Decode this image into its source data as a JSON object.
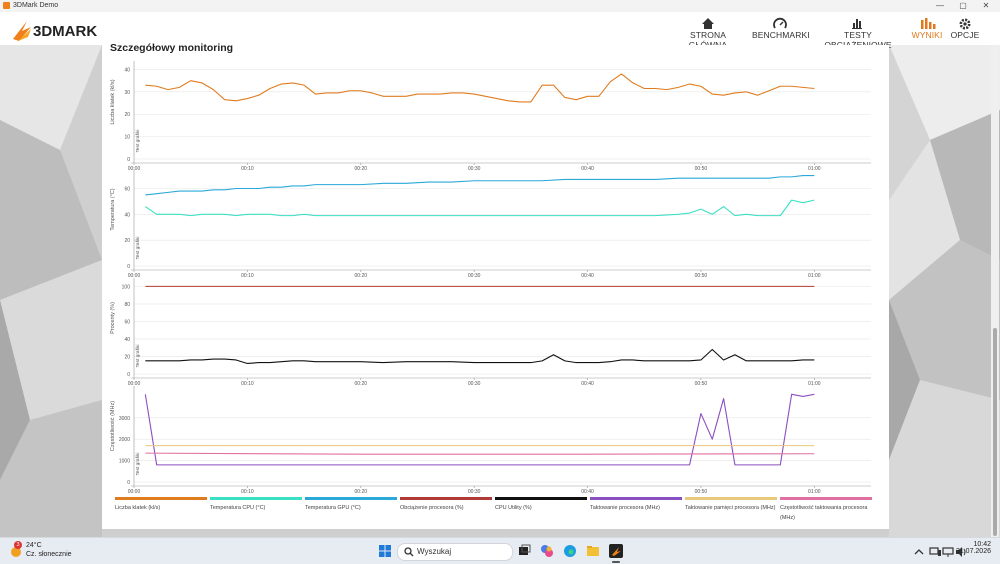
{
  "window": {
    "title": "3DMark Demo",
    "controls": [
      "—",
      "▢",
      "✕"
    ]
  },
  "nav": {
    "logo_text": "3DMARK",
    "items": [
      {
        "label": "STRONA GŁÓWNA",
        "icon": "home-icon"
      },
      {
        "label": "BENCHMARKI",
        "icon": "gauge-icon"
      },
      {
        "label": "TESTY OBCIĄŻENIOWE",
        "icon": "bar-chart-icon"
      },
      {
        "label": "WYNIKI",
        "icon": "results-icon",
        "active": true
      },
      {
        "label": "OPCJE",
        "icon": "gear-icon"
      }
    ],
    "accent": "#e0791e"
  },
  "panel": {
    "title": "Szczegółowy monitoring",
    "test_label": "Test grafiki"
  },
  "chart_data": [
    {
      "type": "line",
      "ylabel": "Liczba klatek (kl/s)",
      "yticks": [
        "0",
        "10",
        "20",
        "30",
        "40"
      ],
      "ylim": [
        0,
        42
      ],
      "xticks": [
        "00:00",
        "00:10",
        "00:20",
        "00:30",
        "00:40",
        "00:50",
        "01:00"
      ],
      "xlim": [
        0,
        65
      ],
      "series": [
        {
          "color": "#e07c20",
          "x": [
            1,
            2,
            3,
            4,
            5,
            6,
            7,
            8,
            9,
            10,
            11,
            12,
            13,
            14,
            15,
            16,
            17,
            18,
            19,
            20,
            21,
            22,
            23,
            24,
            25,
            26,
            27,
            28,
            29,
            30,
            31,
            32,
            33,
            34,
            35,
            36,
            37,
            38,
            39,
            40,
            41,
            42,
            43,
            44,
            45,
            46,
            47,
            48,
            49,
            50,
            51,
            52,
            53,
            54,
            55,
            56,
            57,
            58,
            59,
            60
          ],
          "y": [
            33,
            32.5,
            31,
            32,
            35,
            34,
            31,
            26.5,
            26,
            27,
            28.5,
            31.5,
            33.5,
            34,
            33,
            29,
            29.5,
            29.5,
            30.5,
            30.5,
            29.5,
            28,
            28,
            28,
            29,
            29,
            29,
            29.5,
            29.5,
            29,
            28,
            27,
            26,
            25.5,
            25.5,
            33,
            33,
            27.5,
            26.5,
            28,
            28,
            34.5,
            38,
            34,
            31.5,
            31.5,
            31,
            32,
            33.5,
            32.5,
            29,
            28.5,
            29.5,
            30,
            28.5,
            30.5,
            32.5,
            32.5,
            32,
            31.5
          ]
        }
      ]
    },
    {
      "type": "line",
      "ylabel": "Temperatura (°C)",
      "yticks": [
        "0",
        "20",
        "40",
        "60"
      ],
      "ylim": [
        0,
        72
      ],
      "xticks": [
        "00:00",
        "00:10",
        "00:20",
        "00:30",
        "00:40",
        "00:50",
        "01:00"
      ],
      "xlim": [
        0,
        65
      ],
      "series": [
        {
          "name": "Temperatura CPU (°C)",
          "color": "#3ae0c4",
          "x": [
            1,
            2,
            3,
            4,
            5,
            6,
            7,
            8,
            9,
            10,
            11,
            12,
            13,
            14,
            15,
            16,
            17,
            18,
            20,
            22,
            24,
            26,
            28,
            30,
            32,
            34,
            36,
            38,
            40,
            42,
            44,
            46,
            48,
            49,
            50,
            51,
            52,
            53,
            54,
            55,
            56,
            57,
            58,
            59,
            60
          ],
          "y": [
            46,
            40,
            40,
            40,
            39,
            40,
            40,
            40,
            39,
            40,
            40,
            40,
            39,
            39,
            40,
            39,
            39,
            39,
            39,
            39,
            39,
            39,
            39,
            39,
            39,
            39,
            39,
            39,
            39,
            39,
            39,
            39,
            40,
            41,
            44,
            40,
            46,
            39,
            40,
            39,
            39,
            39,
            51,
            49,
            51
          ]
        },
        {
          "name": "Temperatura GPU (°C)",
          "color": "#2aa8d8",
          "x": [
            1,
            2,
            3,
            4,
            5,
            6,
            7,
            8,
            9,
            10,
            11,
            12,
            13,
            14,
            15,
            16,
            17,
            18,
            20,
            22,
            24,
            26,
            28,
            30,
            32,
            34,
            36,
            38,
            40,
            42,
            44,
            46,
            48,
            49,
            50,
            51,
            52,
            53,
            54,
            55,
            56,
            57,
            58,
            59,
            60
          ],
          "y": [
            55,
            56,
            57,
            58,
            58,
            58,
            59,
            59,
            60,
            60,
            60,
            61,
            61,
            62,
            62,
            63,
            63,
            63,
            63,
            64,
            64,
            65,
            65,
            66,
            66,
            66,
            66,
            67,
            67,
            67,
            67,
            67,
            68,
            68,
            68,
            68,
            68,
            68,
            68,
            68,
            68,
            69,
            69,
            70,
            70
          ]
        }
      ]
    },
    {
      "type": "line",
      "ylabel": "Procenty (%)",
      "yticks": [
        "0",
        "20",
        "40",
        "60",
        "80",
        "100"
      ],
      "ylim": [
        0,
        105
      ],
      "xticks": [
        "00:00",
        "00:10",
        "00:20",
        "00:30",
        "00:40",
        "00:50",
        "01:00"
      ],
      "xlim": [
        0,
        65
      ],
      "series": [
        {
          "name": "Obciążenie procesora (%)",
          "color": "#b03a36",
          "x": [
            1,
            60
          ],
          "y": [
            100,
            100
          ]
        },
        {
          "name": "CPU Utility (%)",
          "color": "#111111",
          "x": [
            1,
            2,
            3,
            4,
            5,
            6,
            7,
            8,
            9,
            10,
            11,
            12,
            13,
            14,
            15,
            16,
            17,
            18,
            20,
            22,
            24,
            26,
            28,
            30,
            32,
            34,
            35,
            36,
            37,
            38,
            39,
            40,
            41,
            42,
            43,
            44,
            45,
            46,
            47,
            48,
            49,
            50,
            51,
            52,
            53,
            54,
            55,
            56,
            57,
            58,
            59,
            60
          ],
          "y": [
            15,
            15,
            15,
            15,
            16,
            16,
            17,
            17,
            16,
            12,
            13,
            13,
            14,
            15,
            15,
            14,
            14,
            14,
            14,
            13,
            14,
            14,
            14,
            13,
            13,
            13,
            13,
            15,
            22,
            15,
            13,
            13,
            13,
            14,
            16,
            16,
            15,
            15,
            15,
            15,
            15,
            16,
            28,
            16,
            22,
            15,
            15,
            15,
            15,
            15,
            16,
            16
          ]
        }
      ]
    },
    {
      "type": "line",
      "ylabel": "Częstotliwość (MHz)",
      "yticks": [
        "0",
        "1000",
        "2000",
        "3000"
      ],
      "ylim": [
        0,
        4300
      ],
      "xticks": [
        "00:00",
        "00:10",
        "00:20",
        "00:30",
        "00:40",
        "00:50",
        "01:00"
      ],
      "xlim": [
        0,
        65
      ],
      "series": [
        {
          "name": "Taktowanie procesora (MHz)",
          "color": "#8a4fc0",
          "x": [
            1,
            2,
            5,
            10,
            20,
            30,
            40,
            49,
            50,
            51,
            52,
            53,
            54,
            55,
            57,
            58,
            59,
            60
          ],
          "y": [
            4100,
            800,
            800,
            800,
            800,
            800,
            800,
            800,
            3200,
            2000,
            3900,
            800,
            800,
            800,
            800,
            4100,
            4000,
            4100
          ]
        },
        {
          "name": "Taktowanie pamięci procesora (MHz)",
          "color": "#e8c87a",
          "x": [
            1,
            60
          ],
          "y": [
            1700,
            1700
          ]
        },
        {
          "name": "Częstotliwość taktowania procesora (MHz)",
          "color": "#e070a0",
          "x": [
            1,
            20,
            40,
            60
          ],
          "y": [
            1350,
            1300,
            1300,
            1320
          ]
        }
      ]
    }
  ],
  "legend": [
    {
      "label": "Liczba klatek (kl/s)",
      "color": "#e07c20"
    },
    {
      "label": "Temperatura CPU (°C)",
      "color": "#3ae0c4"
    },
    {
      "label": "Temperatura GPU (°C)",
      "color": "#2aa8d8"
    },
    {
      "label": "Obciążenie procesora (%)",
      "color": "#b03a36"
    },
    {
      "label": "CPU Utility (%)",
      "color": "#111111"
    },
    {
      "label": "Taktowanie procesora (MHz)",
      "color": "#8a4fc0"
    },
    {
      "label": "Taktowanie pamięci procesora (MHz)",
      "color": "#e8c87a"
    },
    {
      "label": "Częstotliwość taktowania procesora (MHz)",
      "color": "#e070a0"
    }
  ],
  "taskbar": {
    "weather_temp": "24°C",
    "weather_desc": "Cz. słonecznie",
    "weather_badge": "3",
    "search_placeholder": "Wyszukaj",
    "time": "10:42",
    "date": "31.07.2026"
  }
}
